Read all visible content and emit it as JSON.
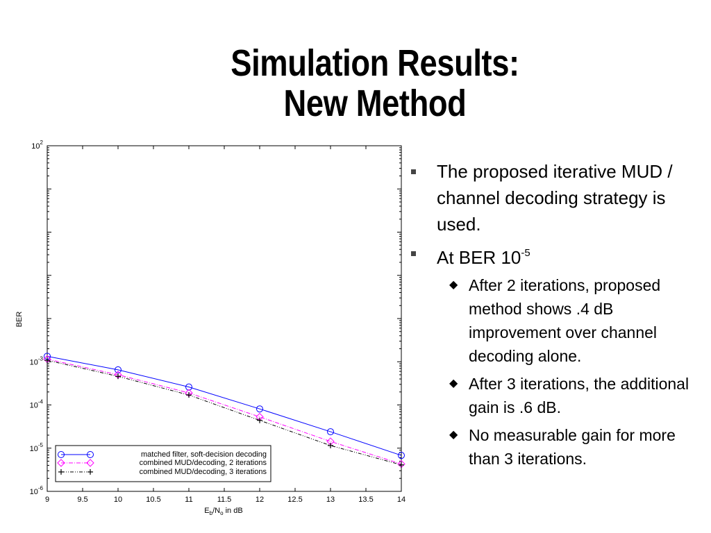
{
  "slide": {
    "title_line1": "Simulation Results:",
    "title_line2": "New Method"
  },
  "bullets": {
    "item1": "The proposed iterative MUD / channel decoding strategy is used.",
    "item2_text": "At BER 10",
    "item2_exp": "-5",
    "sub1": "After 2 iterations, proposed method shows .4 dB improvement over channel decoding alone.",
    "sub2": "After 3 iterations, the additional gain is .6 dB.",
    "sub3": "No measurable gain for more than 3 iterations.",
    "square_icon": "square-bullet-icon",
    "diamond_icon": "diamond-bullet-icon"
  },
  "chart_data": {
    "type": "line",
    "xlabel": "E",
    "xlabel_sub1": "b",
    "xlabel_mid": "/N",
    "xlabel_sub2": "o",
    "xlabel_suffix": " in dB",
    "ylabel": "BER",
    "x_scale": "linear",
    "y_scale": "log",
    "xlim": [
      9,
      14
    ],
    "ylim": [
      1e-06,
      100
    ],
    "x_ticks": [
      "9",
      "9.5",
      "10",
      "10.5",
      "11",
      "11.5",
      "12",
      "12.5",
      "13",
      "13.5",
      "14"
    ],
    "y_ticks": [
      {
        "base": "10",
        "exp": "2",
        "value": 100
      },
      {
        "base": "10",
        "exp": "-3",
        "value": 0.001
      },
      {
        "base": "10",
        "exp": "-4",
        "value": 0.0001
      },
      {
        "base": "10",
        "exp": "-5",
        "value": 1e-05
      },
      {
        "base": "10",
        "exp": "-6",
        "value": 1e-06
      }
    ],
    "grid": false,
    "legend_position": "bottom-left",
    "x": [
      9,
      10,
      11,
      12,
      13,
      14
    ],
    "series": [
      {
        "name": "matched filter, soft-decision decoding",
        "values": [
          0.00134,
          0.00065,
          0.00026,
          8.1e-05,
          2.4e-05,
          6.8e-06
        ],
        "color": "#0000ff",
        "marker": "circle",
        "dash": "solid"
      },
      {
        "name": "combined MUD/decoding, 2 iterations",
        "values": [
          0.00115,
          0.0005,
          0.00019,
          5.3e-05,
          1.43e-05,
          4.3e-06
        ],
        "color": "#ff00ff",
        "marker": "diamond",
        "dash": "dashdot"
      },
      {
        "name": "combined MUD/decoding, 3 iterations",
        "values": [
          0.00108,
          0.00046,
          0.00017,
          4.4e-05,
          1.15e-05,
          4.1e-06
        ],
        "color": "#000000",
        "marker": "plus",
        "dash": "dashdotdot"
      }
    ]
  }
}
